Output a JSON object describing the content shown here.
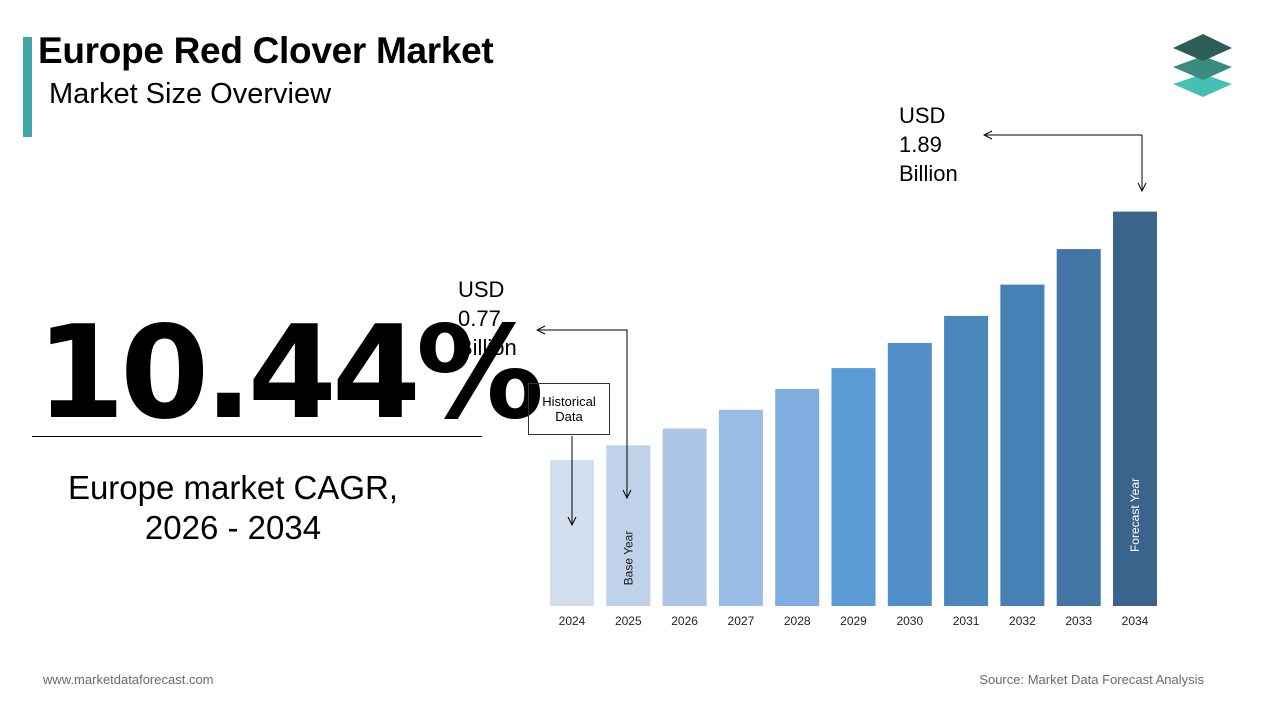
{
  "header": {
    "title": "Europe Red Clover Market",
    "subtitle": "Market Size Overview"
  },
  "kpi": {
    "cagr_value": "10.44%",
    "cagr_label": "Europe market CAGR, 2026 - 2034"
  },
  "annotations": {
    "start_value": "USD\n0.77\nBillion",
    "end_value": "USD\n1.89\nBillion",
    "historical_box": "Historical Data",
    "base_year_label": "Base Year",
    "forecast_year_label": "Forecast Year"
  },
  "footer": {
    "website": "www.marketdataforecast.com",
    "source": "Source: Market Data Forecast Analysis"
  },
  "colors": {
    "accent": "#3fa7a6",
    "logo_dark": "#2e5d57",
    "logo_mid": "#3a8c80",
    "logo_light": "#45c0b5"
  },
  "chart_data": {
    "type": "bar",
    "categories": [
      "2024",
      "2025",
      "2026",
      "2027",
      "2028",
      "2029",
      "2030",
      "2031",
      "2032",
      "2033",
      "2034"
    ],
    "values": [
      0.7,
      0.77,
      0.85,
      0.94,
      1.04,
      1.14,
      1.26,
      1.39,
      1.54,
      1.71,
      1.89
    ],
    "bar_colors": [
      "#d3deee",
      "#c0d2ea",
      "#adc6e6",
      "#9abbe3",
      "#80ade0",
      "#5a9bd5",
      "#528ec9",
      "#4b87bd",
      "#4680b5",
      "#4274a4",
      "#3b648d"
    ],
    "unit": "USD Billion",
    "ylim": [
      0,
      2.3
    ],
    "grid": false
  }
}
